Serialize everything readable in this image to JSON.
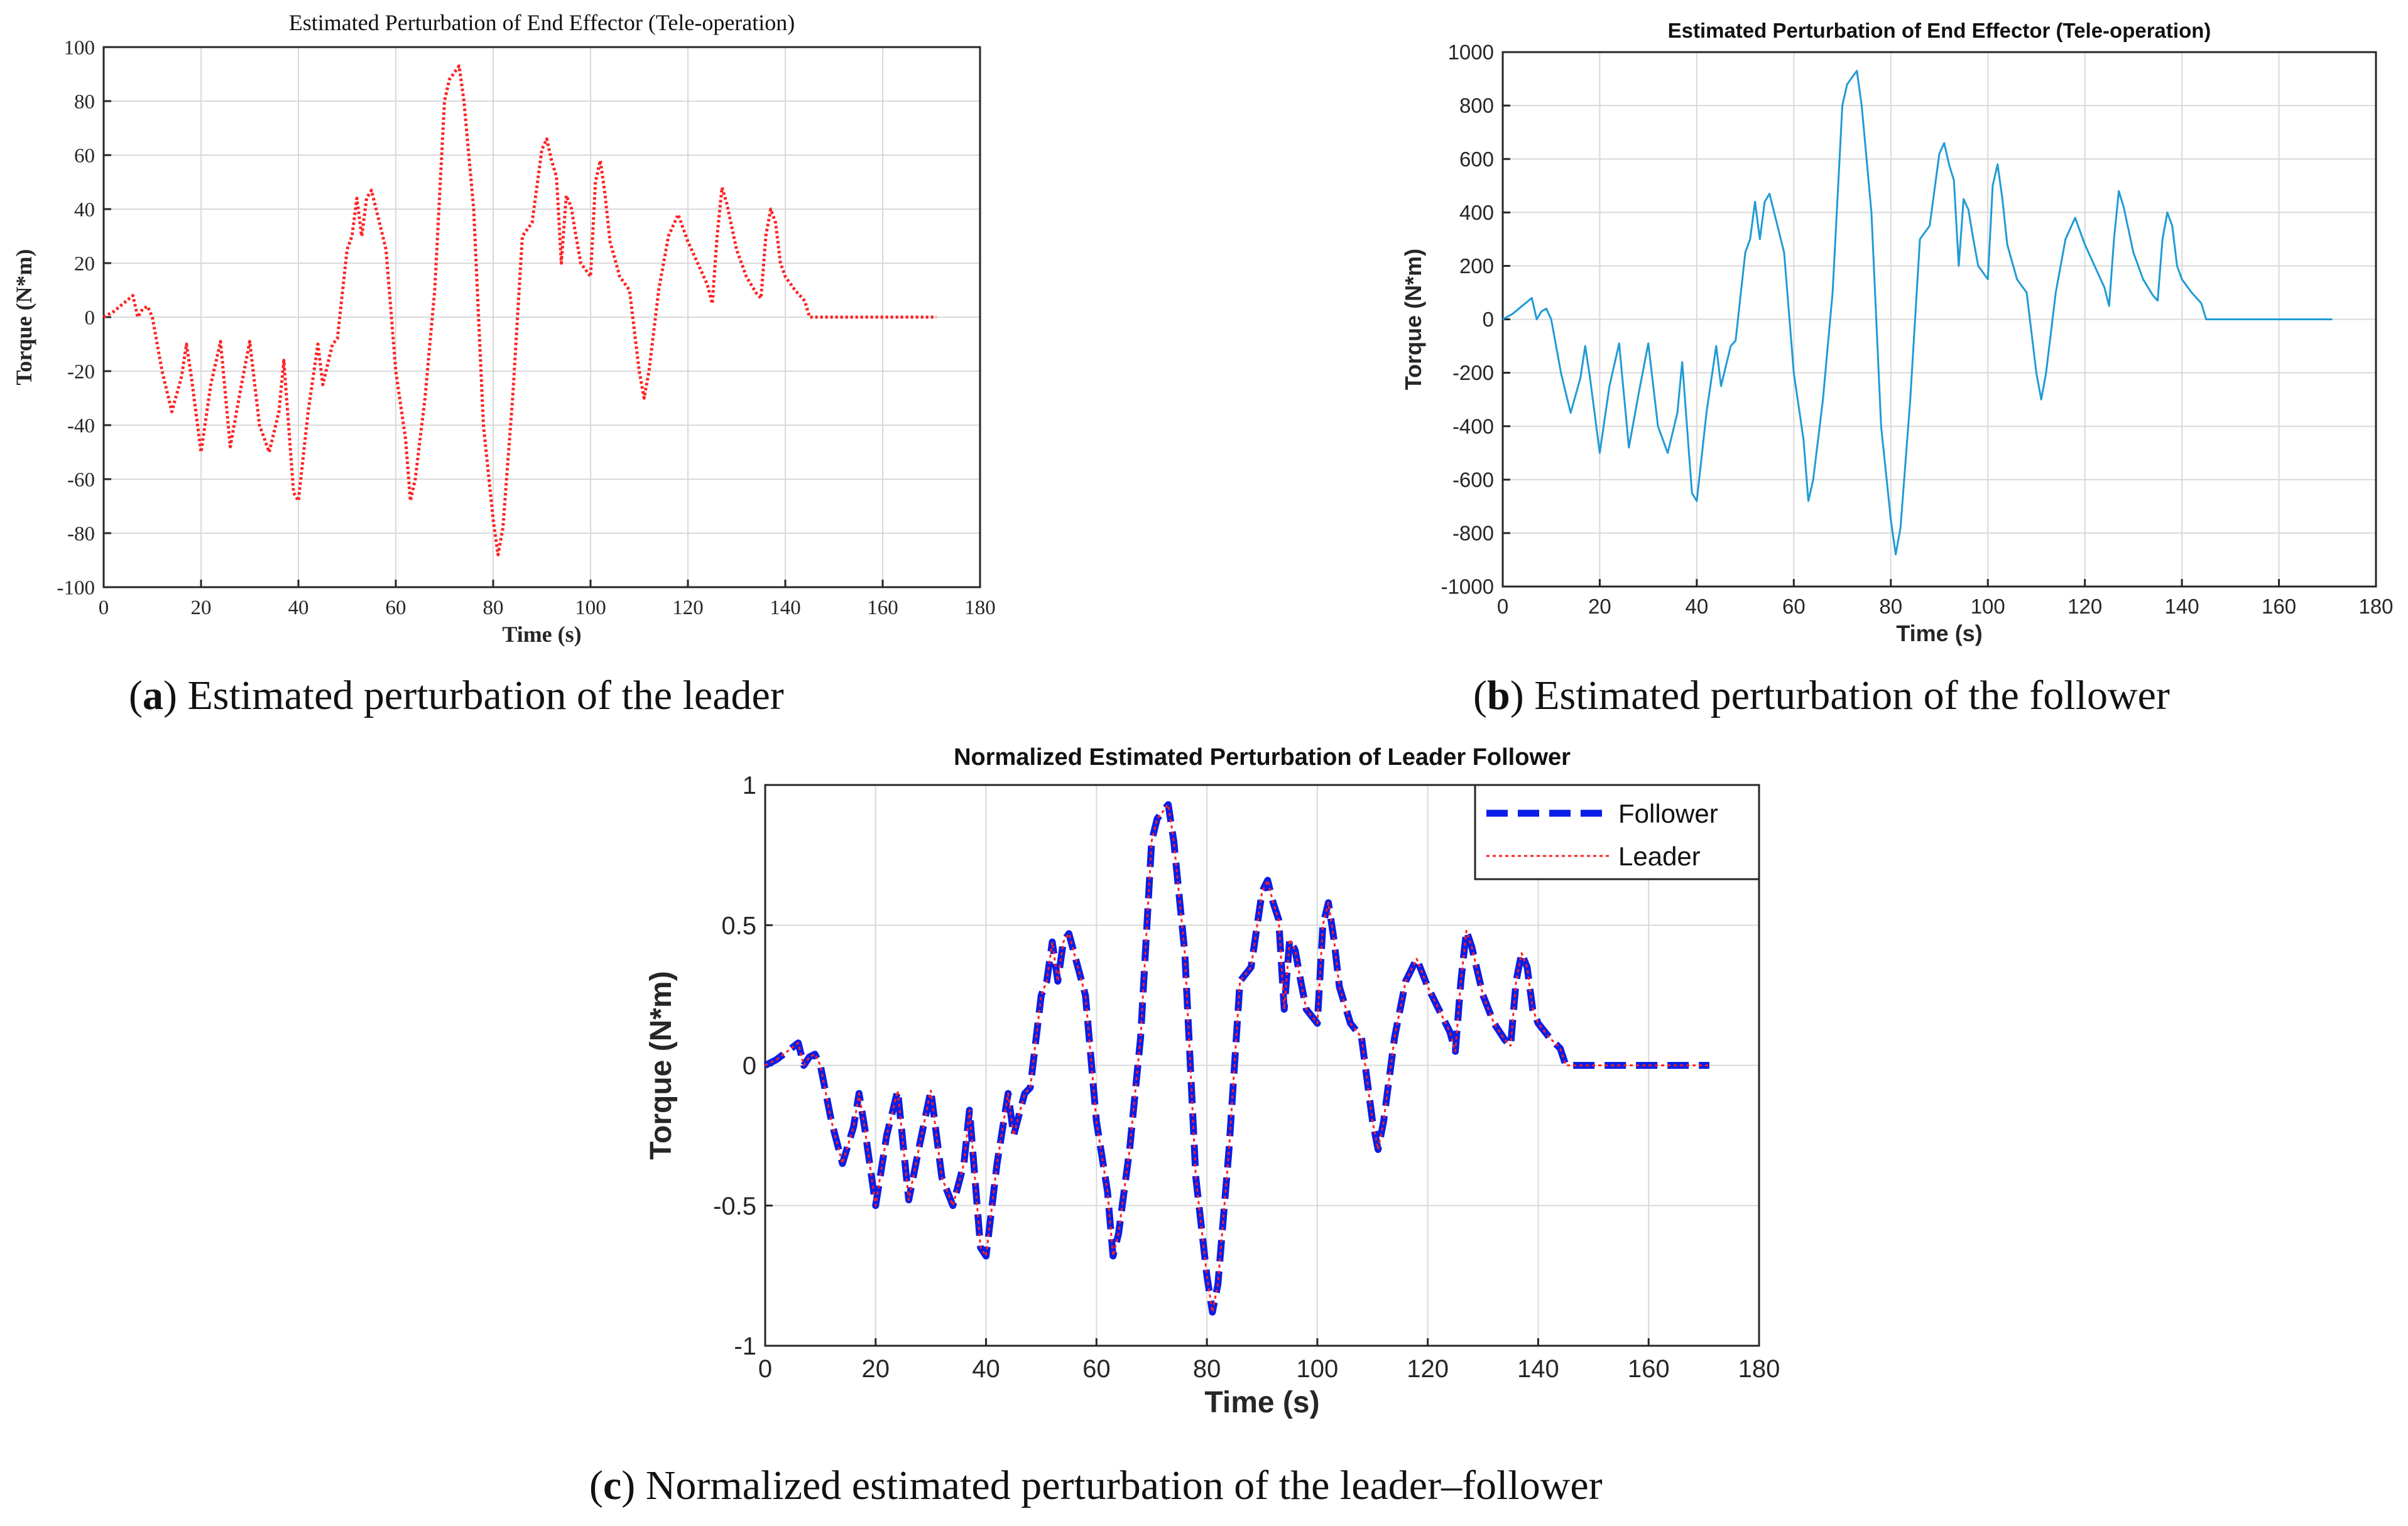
{
  "figure": {
    "captions": [
      {
        "letter": "a",
        "text": "Estimated perturbation of the leader"
      },
      {
        "letter": "b",
        "text": "Estimated perturbation of the follower"
      },
      {
        "letter": "c",
        "text": "Normalized estimated perturbation of the leader–follower"
      }
    ]
  },
  "chart_data": [
    {
      "id": "a",
      "type": "line",
      "title": "Estimated Perturbation of End Effector (Tele-operation)",
      "xlabel": "Time (s)",
      "ylabel": "Torque (N*m)",
      "xlim": [
        0,
        180
      ],
      "ylim": [
        -100,
        100
      ],
      "xticks": [
        0,
        20,
        40,
        60,
        80,
        100,
        120,
        140,
        160,
        180
      ],
      "yticks": [
        -100,
        -80,
        -60,
        -40,
        -20,
        0,
        20,
        40,
        60,
        80,
        100
      ],
      "grid": true,
      "colors": {
        "line": "#ff2020"
      },
      "line_style": "dotted",
      "series": [
        {
          "name": "Leader",
          "scale": 100
        }
      ]
    },
    {
      "id": "b",
      "type": "line",
      "title": "Estimated Perturbation of End Effector (Tele-operation)",
      "xlabel": "Time (s)",
      "ylabel": "Torque (N*m)",
      "xlim": [
        0,
        180
      ],
      "ylim": [
        -1000,
        1000
      ],
      "xticks": [
        0,
        20,
        40,
        60,
        80,
        100,
        120,
        140,
        160,
        180
      ],
      "yticks": [
        -1000,
        -800,
        -600,
        -400,
        -200,
        0,
        200,
        400,
        600,
        800,
        1000
      ],
      "grid": true,
      "colors": {
        "line": "#1f9bd6"
      },
      "line_style": "solid",
      "series": [
        {
          "name": "Follower",
          "scale": 1000
        }
      ]
    },
    {
      "id": "c",
      "type": "line",
      "title": "Normalized Estimated Perturbation of Leader Follower",
      "xlabel": "Time (s)",
      "ylabel": "Torque (N*m)",
      "xlim": [
        0,
        180
      ],
      "ylim": [
        -1,
        1
      ],
      "xticks": [
        0,
        20,
        40,
        60,
        80,
        100,
        120,
        140,
        160,
        180
      ],
      "yticks": [
        -1,
        -0.5,
        0,
        0.5,
        1
      ],
      "ytick_labels": [
        "-1",
        "-0.5",
        "0",
        "0.5",
        "1"
      ],
      "grid": true,
      "legend": {
        "position": "top-right",
        "entries": [
          "Follower",
          "Leader"
        ]
      },
      "colors": {
        "follower": "#0a1ee8",
        "leader": "#ff2020"
      },
      "series": [
        {
          "name": "Follower",
          "style": "dashed",
          "scale": 1
        },
        {
          "name": "Leader",
          "style": "dotted",
          "scale": 1
        }
      ]
    }
  ],
  "base_signal": {
    "t": [
      0,
      2,
      4,
      6,
      7,
      8,
      9,
      10,
      12,
      14,
      16,
      17,
      18,
      20,
      22,
      24,
      26,
      28,
      30,
      32,
      34,
      36,
      37,
      39,
      40,
      42,
      44,
      45,
      47,
      48,
      50,
      51,
      52,
      53,
      54,
      55,
      58,
      60,
      62,
      63,
      64,
      66,
      68,
      70,
      71,
      73,
      74,
      76,
      78,
      80,
      81,
      82,
      84,
      86,
      88,
      90,
      91,
      92,
      93,
      94,
      95,
      96,
      97,
      98,
      100,
      101,
      102,
      103,
      104,
      106,
      108,
      110,
      111,
      112,
      114,
      116,
      118,
      119,
      120,
      122,
      124,
      125,
      126,
      127,
      128,
      130,
      132,
      134,
      135,
      136,
      137,
      138,
      139,
      140,
      142,
      144,
      145,
      150,
      160,
      171
    ],
    "v": [
      0,
      0.02,
      0.05,
      0.08,
      0.0,
      0.03,
      0.04,
      0.0,
      -0.2,
      -0.35,
      -0.22,
      -0.1,
      -0.22,
      -0.5,
      -0.25,
      -0.09,
      -0.48,
      -0.28,
      -0.09,
      -0.4,
      -0.5,
      -0.35,
      -0.16,
      -0.65,
      -0.68,
      -0.35,
      -0.1,
      -0.25,
      -0.1,
      -0.08,
      0.25,
      0.3,
      0.44,
      0.3,
      0.44,
      0.47,
      0.25,
      -0.2,
      -0.45,
      -0.68,
      -0.6,
      -0.3,
      0.1,
      0.8,
      0.88,
      0.93,
      0.8,
      0.4,
      -0.4,
      -0.75,
      -0.88,
      -0.78,
      -0.3,
      0.3,
      0.35,
      0.62,
      0.66,
      0.58,
      0.52,
      0.2,
      0.45,
      0.41,
      0.3,
      0.2,
      0.15,
      0.5,
      0.58,
      0.45,
      0.28,
      0.15,
      0.1,
      -0.2,
      -0.3,
      -0.2,
      0.1,
      0.3,
      0.38,
      0.33,
      0.28,
      0.2,
      0.12,
      0.05,
      0.3,
      0.48,
      0.42,
      0.25,
      0.15,
      0.09,
      0.07,
      0.3,
      0.4,
      0.35,
      0.2,
      0.15,
      0.1,
      0.06,
      0.0,
      0.0,
      0.0,
      0.0
    ]
  }
}
